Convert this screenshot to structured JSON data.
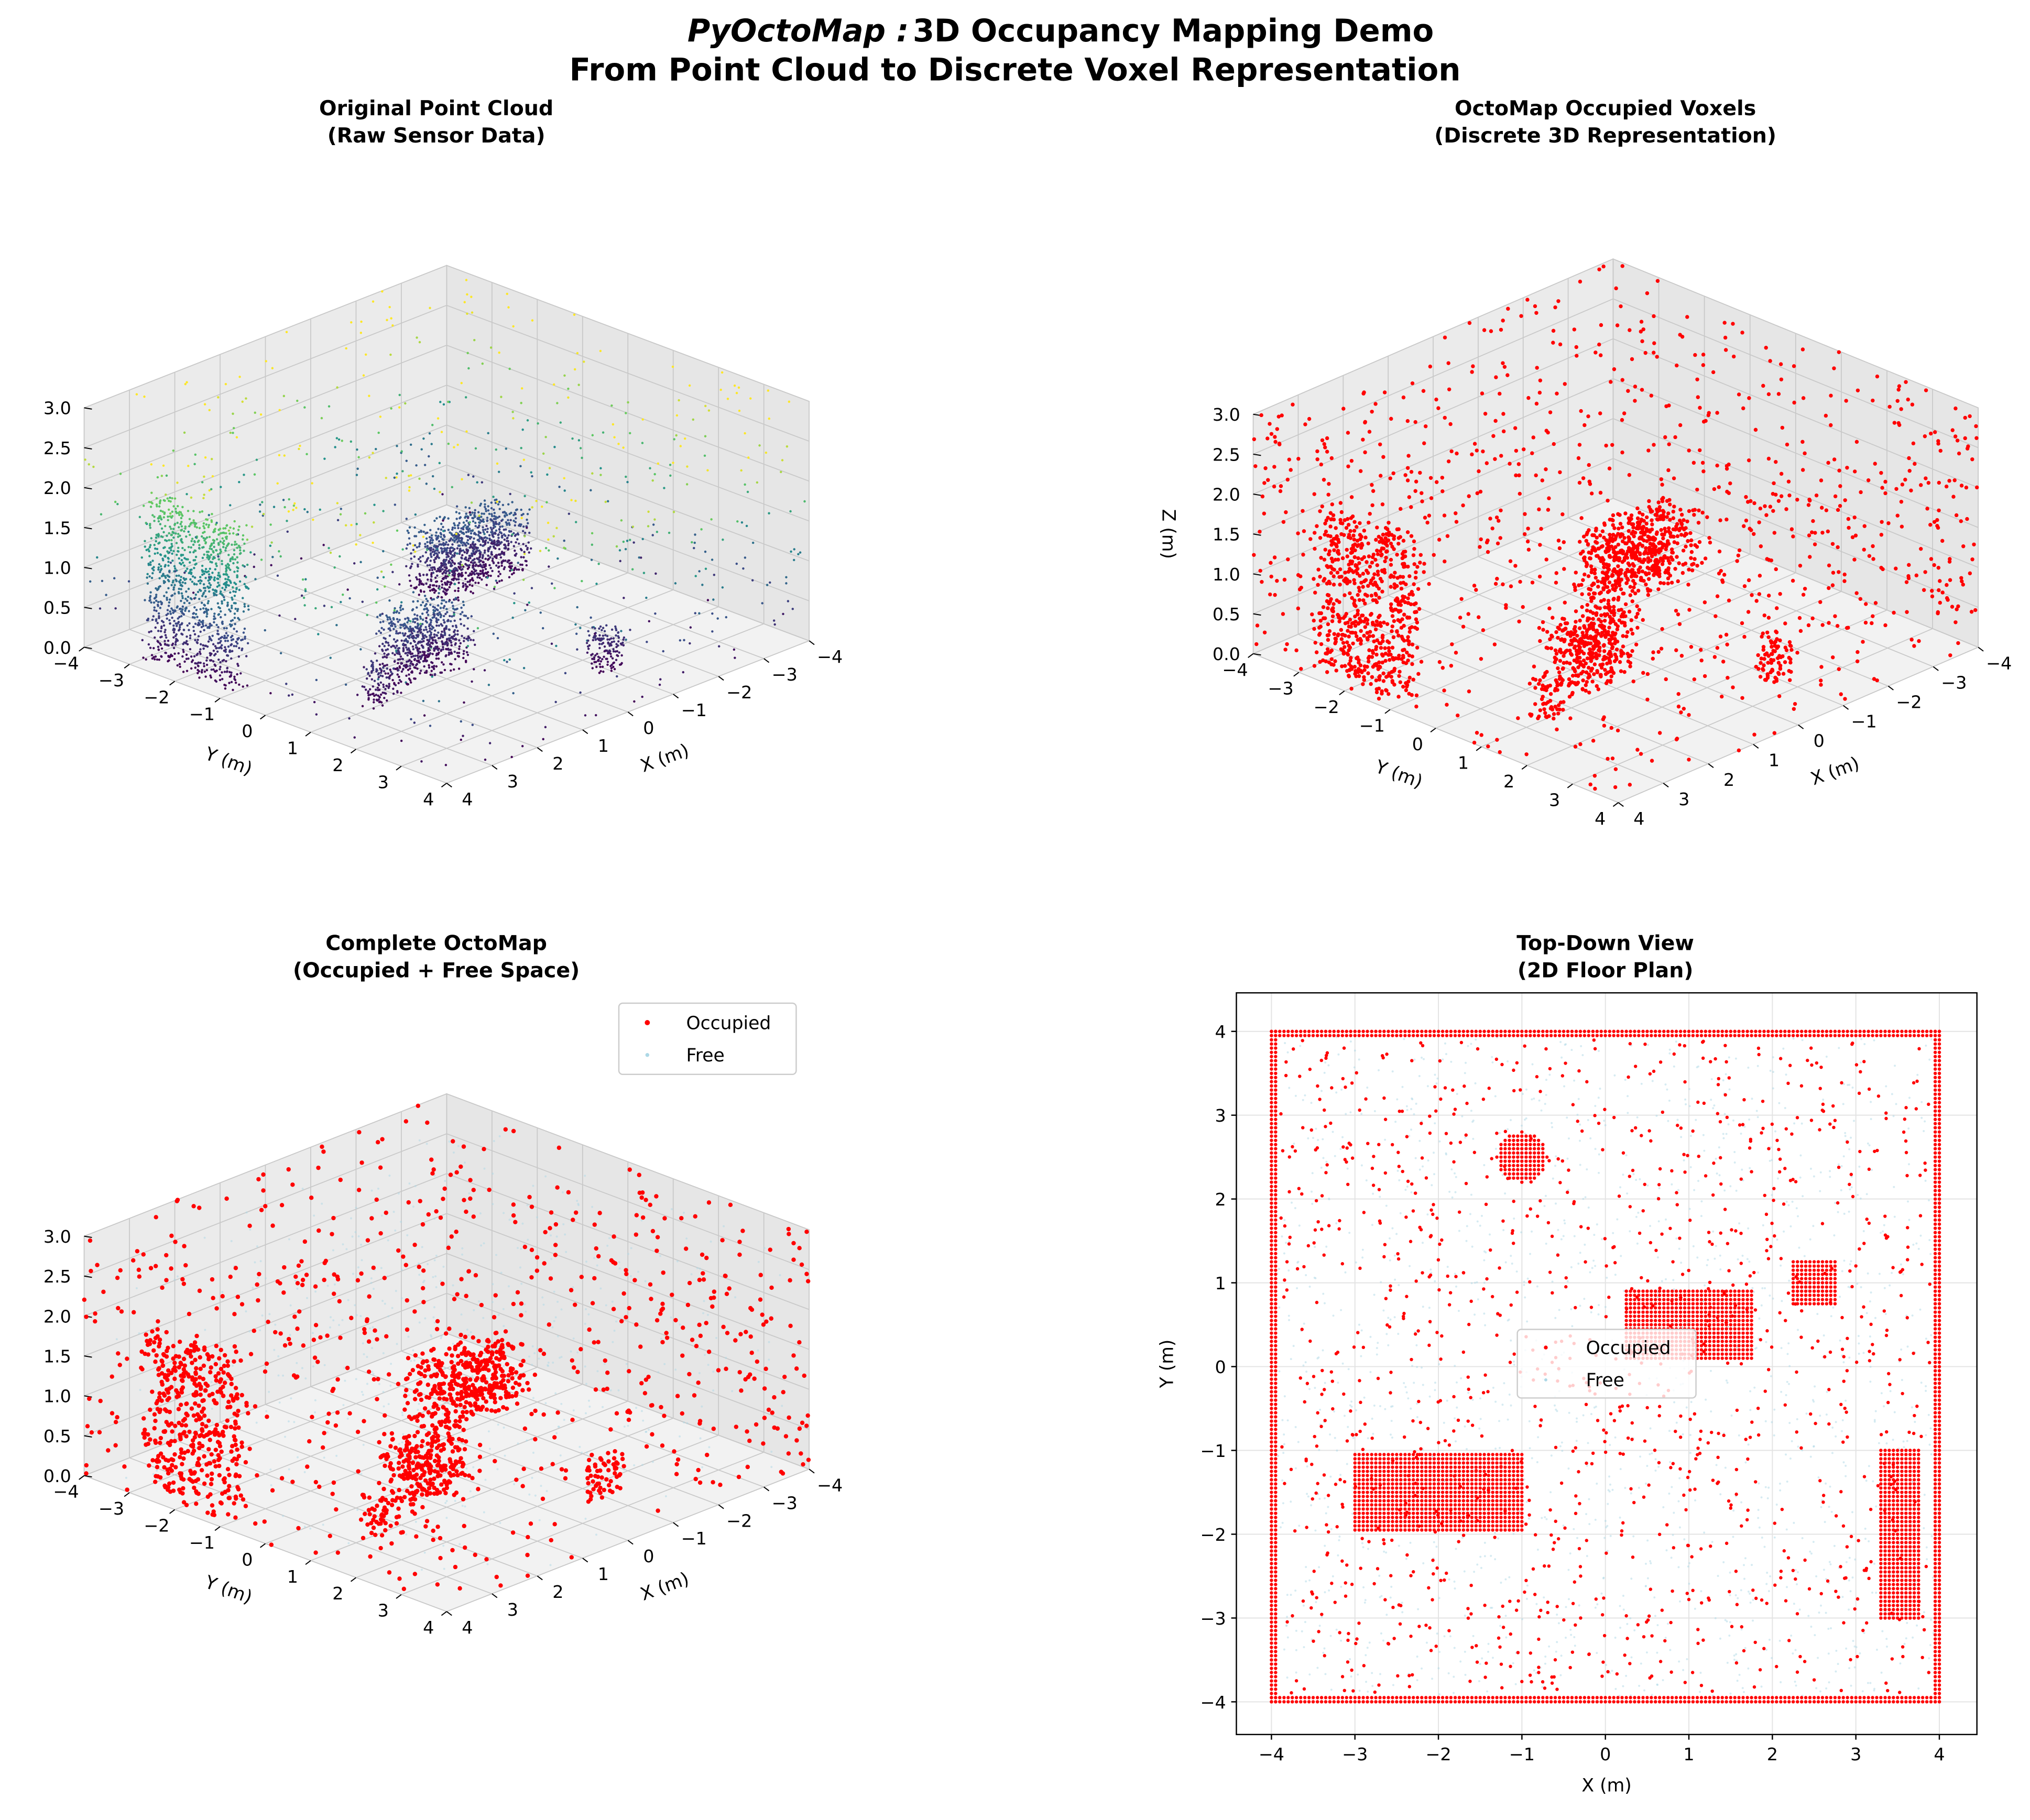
{
  "title": {
    "line1_italic": "PyOctoMap :",
    "line1": "3D Occupancy Mapping Demo",
    "line2": "From Point Cloud to Discrete Voxel Representation"
  },
  "colors": {
    "occupied": "#ff0000",
    "free": "#add8e6",
    "colormap": "viridis",
    "pane": "#f2f2f2",
    "grid": "#d0d0d0"
  },
  "chart_data": [
    {
      "type": "scatter",
      "projection": "3d",
      "title": [
        "Original Point Cloud",
        "(Raw Sensor Data)"
      ],
      "xlabel": "X (m)",
      "ylabel": "Y (m)",
      "zlabel": "",
      "xlim": [
        -4,
        4
      ],
      "ylim": [
        -4,
        4
      ],
      "zlim": [
        0,
        3
      ],
      "color_by": "z",
      "xticks": [
        "-4",
        "-3",
        "-2",
        "-1",
        "0",
        "1",
        "2",
        "3",
        "4"
      ],
      "yticks": [
        "-4",
        "-3",
        "-2",
        "-1",
        "0",
        "1",
        "2",
        "3",
        "4"
      ],
      "zticks": [
        "0.0",
        "0.5",
        "1.0",
        "1.5",
        "2.0",
        "2.5",
        "3.0"
      ]
    },
    {
      "type": "scatter",
      "projection": "3d",
      "title": [
        "OctoMap Occupied Voxels",
        "(Discrete 3D Representation)"
      ],
      "xlabel": "X (m)",
      "ylabel": "Y (m)",
      "zlabel": "Z (m)",
      "xlim": [
        -4,
        4
      ],
      "ylim": [
        -4,
        4
      ],
      "zlim": [
        0,
        3
      ],
      "color": "#ff0000",
      "xticks": [
        "-4",
        "-3",
        "-2",
        "-1",
        "0",
        "1",
        "2",
        "3",
        "4"
      ],
      "yticks": [
        "-4",
        "-3",
        "-2",
        "-1",
        "0",
        "1",
        "2",
        "3",
        "4"
      ],
      "zticks": [
        "0.0",
        "0.5",
        "1.0",
        "1.5",
        "2.0",
        "2.5",
        "3.0"
      ]
    },
    {
      "type": "scatter",
      "projection": "3d",
      "title": [
        "Complete OctoMap",
        "(Occupied + Free Space)"
      ],
      "xlabel": "X (m)",
      "ylabel": "Y (m)",
      "zlabel": "",
      "xlim": [
        -4,
        4
      ],
      "ylim": [
        -4,
        4
      ],
      "zlim": [
        0,
        3
      ],
      "series": [
        {
          "name": "Occupied",
          "color": "#ff0000"
        },
        {
          "name": "Free",
          "color": "#add8e6"
        }
      ],
      "legend": "top-right",
      "xticks": [
        "-4",
        "-3",
        "-2",
        "-1",
        "0",
        "1",
        "2",
        "3",
        "4"
      ],
      "yticks": [
        "-4",
        "-3",
        "-2",
        "-1",
        "0",
        "1",
        "2",
        "3",
        "4"
      ],
      "zticks": [
        "0.0",
        "0.5",
        "1.0",
        "1.5",
        "2.0",
        "2.5",
        "3.0"
      ]
    },
    {
      "type": "scatter",
      "title": [
        "Top-Down View",
        "(2D Floor Plan)"
      ],
      "xlabel": "X (m)",
      "ylabel": "Y (m)",
      "xlim": [
        -4.42,
        4.45
      ],
      "ylim": [
        -4.39,
        4.46
      ],
      "grid": true,
      "series": [
        {
          "name": "Occupied",
          "color": "#ff0000"
        },
        {
          "name": "Free",
          "color": "#add8e6"
        }
      ],
      "legend": "center",
      "xticks": [
        "−4",
        "−3",
        "−2",
        "−1",
        "0",
        "1",
        "2",
        "3",
        "4"
      ],
      "yticks": [
        "−4",
        "−3",
        "−2",
        "−1",
        "0",
        "1",
        "2",
        "3",
        "4"
      ],
      "obstacles": [
        {
          "shape": "walls",
          "x": [
            -4,
            4
          ],
          "y": [
            -4,
            4
          ],
          "z": [
            0,
            3
          ]
        },
        {
          "shape": "box",
          "x": [
            -3,
            -1
          ],
          "y": [
            -1.95,
            -1.05
          ],
          "z": [
            0,
            0.8
          ]
        },
        {
          "shape": "box",
          "x": [
            0.25,
            1.75
          ],
          "y": [
            0.1,
            0.9
          ],
          "z": [
            0,
            0.8
          ]
        },
        {
          "shape": "box",
          "x": [
            2.25,
            2.75
          ],
          "y": [
            0.75,
            1.25
          ],
          "z": [
            0,
            0.5
          ]
        },
        {
          "shape": "box",
          "x": [
            3.3,
            3.75
          ],
          "y": [
            -3,
            -1
          ],
          "z": [
            0,
            2
          ]
        },
        {
          "shape": "cylinder",
          "center": [
            -1,
            2.5
          ],
          "radius": 0.3,
          "z": [
            0,
            0.5
          ]
        }
      ]
    }
  ]
}
